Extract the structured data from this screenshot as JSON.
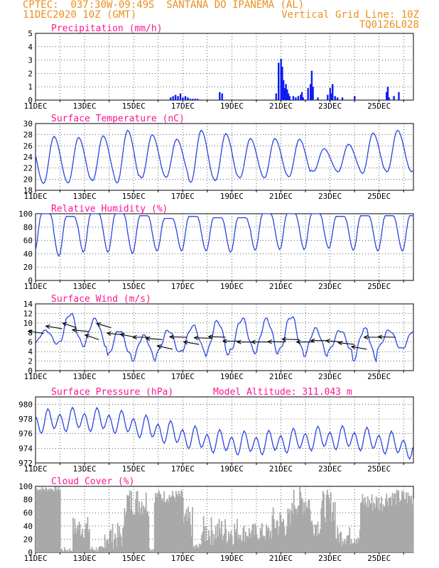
{
  "header": {
    "left_line1": "CPTEC:  037:30W-09:49S  SANTANA DO IPANEMA (AL)",
    "left_line2": "11DEC2020 10Z (GMT)",
    "right_line2": "Vertical Grid Line: 10Z",
    "right_line3": "TQ0126L028"
  },
  "colors": {
    "header": "#e8901e",
    "title": "#ff1493",
    "series": "#2a45e0",
    "bars": "#0f1cf0",
    "cloud": "#a9a9a9",
    "grid": "#000000"
  },
  "x_tick_labels": [
    "11DEC",
    "13DEC",
    "15DEC",
    "17DEC",
    "19DEC",
    "21DEC",
    "23DEC",
    "25DEC"
  ],
  "chart_data": [
    {
      "type": "bar",
      "title": "Precipitation (mm/h)",
      "ylim": [
        0,
        5
      ],
      "yticks": [
        "0",
        "1",
        "2",
        "3",
        "4",
        "5"
      ],
      "x": [
        5.5,
        5.6,
        5.7,
        5.8,
        5.9,
        6.0,
        6.1,
        6.2,
        6.3,
        6.4,
        6.5,
        6.6,
        7.5,
        7.6,
        9.8,
        9.9,
        10.0,
        10.05,
        10.1,
        10.15,
        10.2,
        10.25,
        10.3,
        10.35,
        10.5,
        10.6,
        10.7,
        10.8,
        10.85,
        10.9,
        11.1,
        11.2,
        11.25,
        11.3,
        11.5,
        11.9,
        12.0,
        12.05,
        12.1,
        12.2,
        12.3,
        12.5,
        13.0,
        14.3,
        14.35,
        14.4,
        14.6,
        14.8
      ],
      "values": [
        0.2,
        0.3,
        0.4,
        0.3,
        0.5,
        0.2,
        0.3,
        0.2,
        0.1,
        0.1,
        0.1,
        0.1,
        0.6,
        0.5,
        0.5,
        2.8,
        3.1,
        2.5,
        1.5,
        0.9,
        1.2,
        0.8,
        0.5,
        0.3,
        0.3,
        0.2,
        0.3,
        0.4,
        0.6,
        0.2,
        0.9,
        1.2,
        2.2,
        1.0,
        0.2,
        0.4,
        0.9,
        0.5,
        1.2,
        0.3,
        0.2,
        0.2,
        0.3,
        0.6,
        1.0,
        0.2,
        0.3,
        0.6
      ]
    },
    {
      "type": "line",
      "title": "Surface Temperature (nC)",
      "ylim": [
        18,
        30
      ],
      "yticks": [
        "18",
        "20",
        "22",
        "24",
        "26",
        "28",
        "30"
      ],
      "mean": 23.4,
      "amplitude": 4.5,
      "peak_hours": [
        18,
        42,
        66,
        90,
        114,
        138,
        162,
        186,
        210,
        234,
        258,
        282,
        306,
        330,
        354
      ],
      "peak_values": [
        27.7,
        27.5,
        27.8,
        28.8,
        28.0,
        27.2,
        28.8,
        28.2,
        27.3,
        27.3,
        27.2,
        25.5,
        26.3,
        28.3,
        28.8
      ],
      "trough_values": [
        19.2,
        19.3,
        19.7,
        19.3,
        20.2,
        20.3,
        19.4,
        19.7,
        20.2,
        20.2,
        20.4,
        21.4,
        21.3,
        21.0,
        21.3
      ]
    },
    {
      "type": "line",
      "title": "Relative Humidity (%)",
      "ylim": [
        0,
        100
      ],
      "yticks": [
        "0",
        "20",
        "40",
        "60",
        "80",
        "100"
      ],
      "peak_hours": [
        18,
        42,
        66,
        90,
        114,
        138,
        162,
        186,
        210,
        234,
        258,
        282,
        306,
        330,
        354
      ],
      "peak_values": [
        100,
        96,
        100,
        100,
        97,
        93,
        96,
        94,
        94,
        100,
        100,
        100,
        96,
        97,
        97
      ],
      "trough_values": [
        42,
        36,
        42,
        42,
        40,
        44,
        44,
        44,
        42,
        45,
        46,
        46,
        48,
        45,
        44
      ]
    },
    {
      "type": "line",
      "title": "Surface Wind (m/s)",
      "ylim": [
        0,
        14
      ],
      "yticks": [
        "0",
        "2",
        "4",
        "6",
        "8",
        "10",
        "12",
        "14"
      ],
      "peak_values": [
        8.5,
        12.0,
        11.0,
        8.5,
        7.5,
        8.5,
        9.5,
        10.5,
        11.0,
        11.0,
        11.5,
        9.0,
        8.5,
        9.0,
        8.5
      ],
      "trough_values": [
        5.5,
        5.5,
        5.0,
        3.0,
        2.0,
        3.5,
        4.0,
        3.0,
        4.0,
        3.5,
        4.0,
        3.0,
        4.0,
        2.0,
        4.5
      ]
    },
    {
      "type": "line",
      "title": "Surface Pressure (hPa)",
      "extra_label": "Model Altitude: 311.043 m",
      "ylim": [
        972,
        981
      ],
      "yticks": [
        "972",
        "974",
        "976",
        "978",
        "980"
      ],
      "start": 977.5,
      "end": 973.8
    },
    {
      "type": "area",
      "title": "Cloud Cover (%)",
      "ylim": [
        0,
        100
      ],
      "yticks": [
        "0",
        "20",
        "40",
        "60",
        "80",
        "100"
      ]
    }
  ]
}
